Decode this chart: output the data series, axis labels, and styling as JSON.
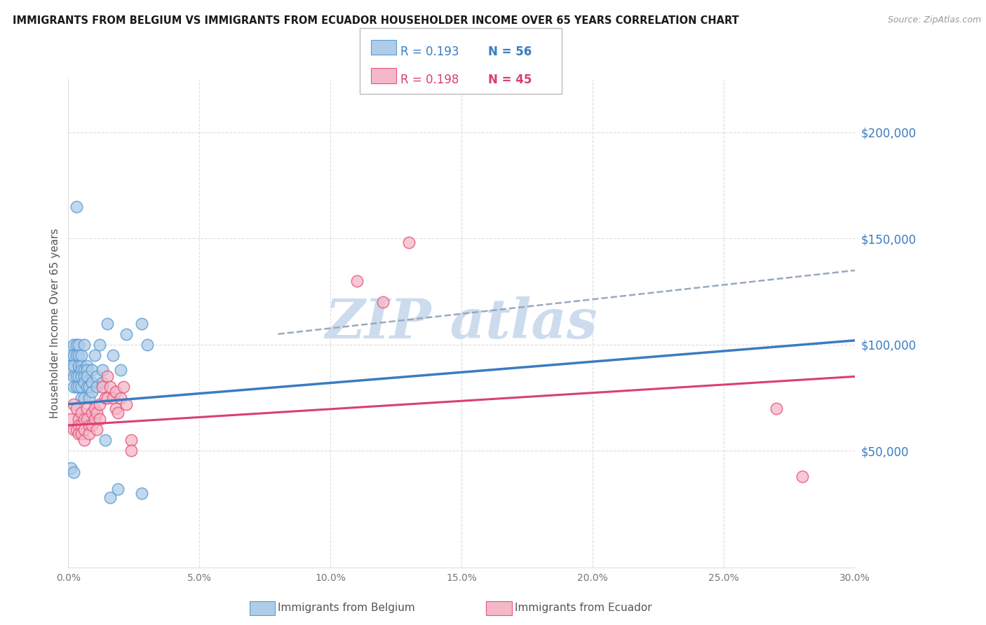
{
  "title": "IMMIGRANTS FROM BELGIUM VS IMMIGRANTS FROM ECUADOR HOUSEHOLDER INCOME OVER 65 YEARS CORRELATION CHART",
  "source": "Source: ZipAtlas.com",
  "ylabel": "Householder Income Over 65 years",
  "xlim": [
    0.0,
    0.3
  ],
  "ylim": [
    -5000,
    225000
  ],
  "ytick_values": [
    50000,
    100000,
    150000,
    200000
  ],
  "ytick_labels": [
    "$50,000",
    "$100,000",
    "$150,000",
    "$200,000"
  ],
  "xtick_values": [
    0.0,
    0.05,
    0.1,
    0.15,
    0.2,
    0.25,
    0.3
  ],
  "xtick_labels": [
    "0.0%",
    "5.0%",
    "10.0%",
    "15.0%",
    "20.0%",
    "25.0%",
    "30.0%"
  ],
  "legend_r_belgium": "0.193",
  "legend_n_belgium": "56",
  "legend_r_ecuador": "0.198",
  "legend_n_ecuador": "45",
  "belgium_fill_color": "#aecde8",
  "ecuador_fill_color": "#f4b8c8",
  "belgium_edge_color": "#5b9bd5",
  "ecuador_edge_color": "#e8547a",
  "belgium_line_color": "#3a7cc1",
  "ecuador_line_color": "#d94070",
  "dashed_line_color": "#99aabb",
  "text_blue": "#3a7cc1",
  "text_pink": "#d94070",
  "tick_color": "#3a7cc1",
  "watermark_color": "#ccdcee",
  "background_color": "#ffffff",
  "belgium_x": [
    0.001,
    0.001,
    0.001,
    0.001,
    0.002,
    0.002,
    0.002,
    0.002,
    0.002,
    0.002,
    0.003,
    0.003,
    0.003,
    0.003,
    0.003,
    0.004,
    0.004,
    0.004,
    0.004,
    0.004,
    0.005,
    0.005,
    0.005,
    0.005,
    0.005,
    0.005,
    0.006,
    0.006,
    0.006,
    0.006,
    0.006,
    0.007,
    0.007,
    0.007,
    0.007,
    0.008,
    0.008,
    0.009,
    0.009,
    0.009,
    0.01,
    0.011,
    0.011,
    0.012,
    0.013,
    0.013,
    0.014,
    0.015,
    0.016,
    0.017,
    0.019,
    0.02,
    0.022,
    0.028,
    0.028,
    0.03
  ],
  "belgium_y": [
    95000,
    90000,
    88000,
    42000,
    100000,
    95000,
    90000,
    85000,
    80000,
    40000,
    100000,
    95000,
    85000,
    80000,
    165000,
    95000,
    90000,
    85000,
    80000,
    100000,
    90000,
    88000,
    85000,
    80000,
    75000,
    95000,
    88000,
    85000,
    82000,
    75000,
    100000,
    90000,
    88000,
    85000,
    80000,
    75000,
    80000,
    88000,
    82000,
    78000,
    95000,
    85000,
    80000,
    100000,
    88000,
    82000,
    55000,
    110000,
    28000,
    95000,
    32000,
    88000,
    105000,
    110000,
    30000,
    100000
  ],
  "ecuador_x": [
    0.001,
    0.002,
    0.002,
    0.003,
    0.003,
    0.004,
    0.004,
    0.004,
    0.005,
    0.005,
    0.005,
    0.006,
    0.006,
    0.006,
    0.007,
    0.007,
    0.008,
    0.008,
    0.009,
    0.009,
    0.01,
    0.01,
    0.011,
    0.011,
    0.012,
    0.012,
    0.013,
    0.014,
    0.015,
    0.015,
    0.016,
    0.017,
    0.018,
    0.018,
    0.019,
    0.02,
    0.021,
    0.022,
    0.024,
    0.024,
    0.11,
    0.12,
    0.13,
    0.27,
    0.28
  ],
  "ecuador_y": [
    65000,
    72000,
    60000,
    70000,
    60000,
    65000,
    62000,
    58000,
    68000,
    62000,
    58000,
    65000,
    60000,
    55000,
    70000,
    65000,
    62000,
    58000,
    68000,
    62000,
    70000,
    65000,
    68000,
    60000,
    72000,
    65000,
    80000,
    75000,
    85000,
    75000,
    80000,
    75000,
    78000,
    70000,
    68000,
    75000,
    80000,
    72000,
    55000,
    50000,
    130000,
    120000,
    148000,
    70000,
    38000
  ],
  "belgium_trend_x": [
    0.0,
    0.3
  ],
  "belgium_trend_y": [
    72000,
    102000
  ],
  "ecuador_trend_x": [
    0.0,
    0.3
  ],
  "ecuador_trend_y": [
    62000,
    85000
  ],
  "dashed_trend_x": [
    0.08,
    0.3
  ],
  "dashed_trend_y": [
    105000,
    135000
  ]
}
